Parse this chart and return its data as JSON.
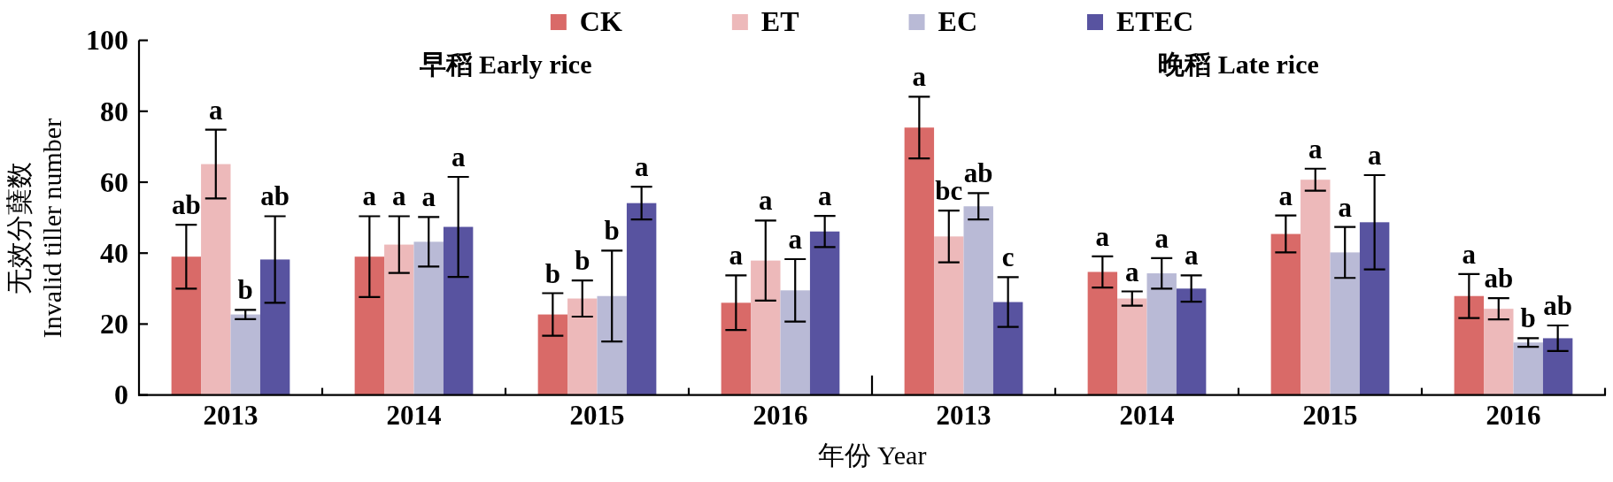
{
  "chart_data": {
    "type": "bar",
    "categories": [
      "2013",
      "2014",
      "2015",
      "2016",
      "2013",
      "2014",
      "2015",
      "2016"
    ],
    "annotations": [
      "早稻 Early rice",
      "晚稻 Late rice"
    ],
    "xlabel": "年份 Year",
    "ylabel": "无效分蘖数\nInvalid tiller number",
    "ylim": [
      0,
      100
    ],
    "yticks": [
      0,
      20,
      40,
      60,
      80,
      100
    ],
    "legend": "top",
    "series": [
      {
        "name": "CK",
        "color": "#d96a68",
        "values": [
          39.0,
          39.0,
          22.7,
          26.0,
          75.4,
          34.7,
          45.4,
          27.9
        ],
        "errors": [
          9.0,
          11.4,
          6.0,
          7.7,
          8.7,
          4.4,
          5.2,
          6.2
        ],
        "value_labels": [
          "ab",
          "a",
          "b",
          "a",
          "a",
          "a",
          "a",
          "a"
        ]
      },
      {
        "name": "ET",
        "color": "#edb9ba",
        "values": [
          65.1,
          42.4,
          27.2,
          37.9,
          44.7,
          27.2,
          60.7,
          24.3
        ],
        "errors": [
          9.7,
          8.0,
          5.1,
          11.3,
          7.3,
          2.0,
          3.1,
          3.0
        ],
        "value_labels": [
          "a",
          "a",
          "b",
          "a",
          "bc",
          "a",
          "a",
          "ab"
        ]
      },
      {
        "name": "EC",
        "color": "#b9bad6",
        "values": [
          22.7,
          43.2,
          27.9,
          29.5,
          53.2,
          34.3,
          40.2,
          14.8
        ],
        "errors": [
          1.3,
          7.0,
          12.8,
          8.8,
          3.7,
          4.3,
          7.2,
          1.2
        ],
        "value_labels": [
          "b",
          "a",
          "b",
          "a",
          "ab",
          "a",
          "a",
          "b"
        ]
      },
      {
        "name": "ETEC",
        "color": "#5853a0",
        "values": [
          38.2,
          47.4,
          54.1,
          46.1,
          26.2,
          30.0,
          48.7,
          16.0
        ],
        "errors": [
          12.2,
          14.1,
          4.6,
          4.4,
          7.0,
          3.7,
          13.3,
          3.6
        ],
        "value_labels": [
          "ab",
          "a",
          "a",
          "a",
          "c",
          "a",
          "a",
          "ab"
        ]
      }
    ]
  }
}
